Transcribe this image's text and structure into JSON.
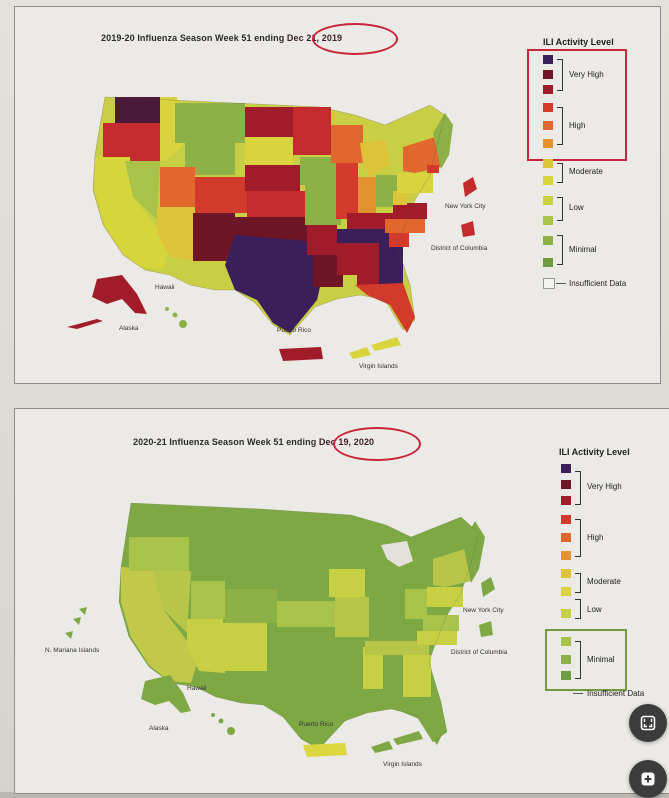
{
  "panels": {
    "top": {
      "title_prefix": "2019-20 Influenza Season Week 51 ending",
      "title_date": "Dec 21, 2019",
      "legend_title": "ILI Activity Level",
      "legend_groups": [
        "Very High",
        "High",
        "Moderate",
        "Low",
        "Minimal"
      ],
      "insufficient": "Insufficient Data",
      "places": {
        "nyc": "New York City",
        "dc": "District of Columbia",
        "hawaii": "Hawaii",
        "alaska": "Alaska",
        "puerto_rico": "Puerto Rico",
        "virgin_islands": "Virgin Islands"
      }
    },
    "bottom": {
      "title_prefix": "2020-21 Influenza Season Week 51 ending",
      "title_date": "Dec 19, 2020",
      "legend_title": "ILI Activity Level",
      "legend_groups": [
        "Very High",
        "High",
        "Moderate",
        "Low",
        "Minimal"
      ],
      "insufficient": "Insufficient Data",
      "places": {
        "nyc": "New York City",
        "dc": "District of Columbia",
        "hawaii": "Hawaii",
        "alaska": "Alaska",
        "puerto_rico": "Puerto Rico",
        "virgin_islands": "Virgin Islands",
        "mariana": "N. Mariana Islands"
      }
    }
  },
  "legend_colors": [
    "#3a1f5a",
    "#6e1625",
    "#a01c2a",
    "#d23a2c",
    "#e0672d",
    "#e3922e",
    "#dcc33a",
    "#d9d33f",
    "#c7cf45",
    "#a9c24a",
    "#8db146",
    "#6e9d40"
  ],
  "insufficient_color": "#f4f4f2",
  "icons": {
    "expand": "expand-icon",
    "add": "add-icon"
  }
}
